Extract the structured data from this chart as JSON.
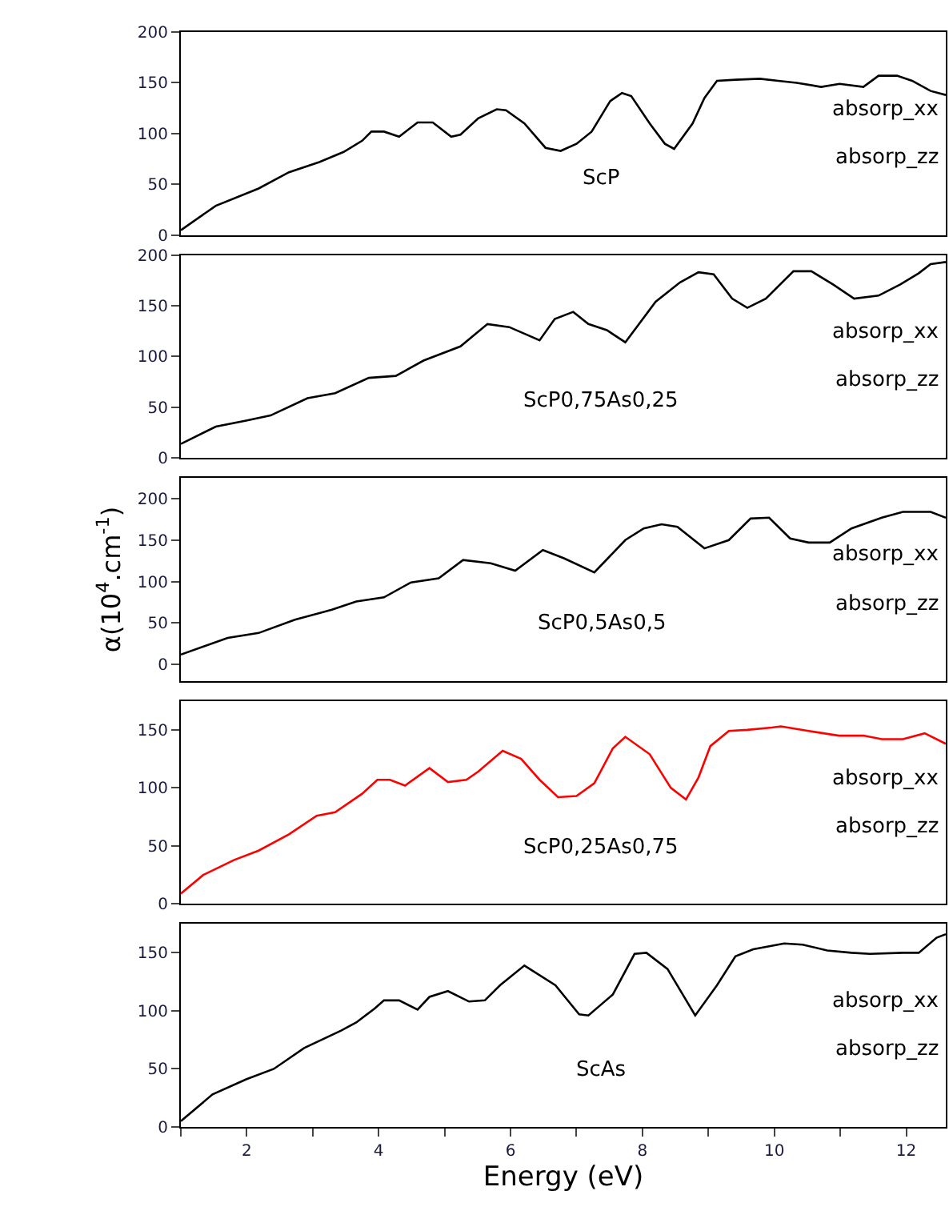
{
  "chart_data": [
    {
      "type": "line",
      "tick_labels": "y",
      "xlim": [
        1,
        12.6
      ],
      "ylim": [
        0,
        200
      ],
      "yticks": [
        0,
        50,
        100,
        150,
        200
      ],
      "x": [
        1,
        1.53,
        2.18,
        2.64,
        3.1,
        3.47,
        3.75,
        3.89,
        4.08,
        4.31,
        4.59,
        4.82,
        5.1,
        5.24,
        5.51,
        5.79,
        5.93,
        6.21,
        6.53,
        6.76,
        7.0,
        7.23,
        7.51,
        7.69,
        7.83,
        8.11,
        8.34,
        8.48,
        8.76,
        8.94,
        9.13,
        9.41,
        9.78,
        10.06,
        10.34,
        10.71,
        10.99,
        11.35,
        11.58,
        11.86,
        12.09,
        12.37,
        12.6
      ],
      "series": [
        {
          "color": "#000000",
          "values": [
            5,
            29,
            46,
            62,
            72,
            82,
            93,
            102,
            102,
            97,
            111,
            111,
            97,
            99,
            115,
            124,
            123,
            110,
            86,
            83,
            90,
            102,
            132,
            140,
            137,
            110,
            90,
            85,
            110,
            135,
            152,
            153,
            154,
            152,
            150,
            146,
            149,
            146,
            157,
            157,
            152,
            142,
            138
          ]
        }
      ],
      "annotations": [
        "ScP",
        "absorp_xx",
        "absorp_zz"
      ]
    },
    {
      "type": "line",
      "tick_labels": "y",
      "xlim": [
        1,
        12.6
      ],
      "ylim": [
        0,
        200
      ],
      "yticks": [
        0,
        50,
        100,
        150,
        200
      ],
      "x": [
        1,
        1.53,
        1.99,
        2.36,
        2.92,
        3.34,
        3.85,
        4.26,
        4.68,
        5.24,
        5.65,
        5.98,
        6.44,
        6.67,
        6.95,
        7.18,
        7.46,
        7.74,
        8.2,
        8.57,
        8.85,
        9.08,
        9.36,
        9.59,
        9.87,
        10.29,
        10.56,
        10.89,
        11.21,
        11.58,
        11.91,
        12.19,
        12.37,
        12.6
      ],
      "series": [
        {
          "color": "#000000",
          "values": [
            14,
            31,
            37,
            42,
            59,
            64,
            79,
            81,
            96,
            110,
            132,
            129,
            116,
            137,
            144,
            132,
            126,
            114,
            154,
            173,
            183,
            181,
            157,
            148,
            157,
            184,
            184,
            171,
            157,
            160,
            171,
            182,
            191,
            193
          ]
        }
      ],
      "annotations": [
        "ScP0,75As0,25",
        "absorp_xx",
        "absorp_zz"
      ]
    },
    {
      "type": "line",
      "tick_labels": "y",
      "xlim": [
        1,
        12.6
      ],
      "ylim": [
        -20,
        225
      ],
      "yticks": [
        0,
        50,
        100,
        150,
        200
      ],
      "ylabel": "α(10$^{4}$.cm$^{-1}$)",
      "x": [
        1,
        1.71,
        2.18,
        2.73,
        3.29,
        3.66,
        4.08,
        4.49,
        4.91,
        5.28,
        5.7,
        6.07,
        6.49,
        6.81,
        7.27,
        7.74,
        8.02,
        8.29,
        8.53,
        8.94,
        9.31,
        9.64,
        9.92,
        10.24,
        10.52,
        10.84,
        11.17,
        11.63,
        11.95,
        12.37,
        12.6
      ],
      "series": [
        {
          "color": "#000000",
          "values": [
            12,
            32,
            38,
            54,
            66,
            76,
            81,
            99,
            104,
            126,
            122,
            113,
            138,
            128,
            111,
            150,
            164,
            169,
            166,
            140,
            150,
            176,
            177,
            152,
            147,
            147,
            164,
            177,
            184,
            184,
            177
          ]
        }
      ],
      "annotations": [
        "ScP0,5As0,5",
        "absorp_xx",
        "absorp_zz"
      ]
    },
    {
      "type": "line",
      "tick_labels": "y",
      "xlim": [
        1,
        12.6
      ],
      "ylim": [
        0,
        175
      ],
      "yticks": [
        0,
        50,
        100,
        150
      ],
      "x": [
        1,
        1.34,
        1.81,
        2.18,
        2.64,
        3.06,
        3.34,
        3.75,
        3.98,
        4.17,
        4.4,
        4.77,
        5.05,
        5.33,
        5.51,
        5.88,
        6.16,
        6.44,
        6.72,
        7.0,
        7.27,
        7.55,
        7.74,
        8.11,
        8.43,
        8.66,
        8.85,
        9.03,
        9.31,
        9.59,
        9.96,
        10.1,
        10.52,
        10.98,
        11.35,
        11.63,
        11.95,
        12.28,
        12.6
      ],
      "series": [
        {
          "color": "#ff0000",
          "values": [
            9,
            25,
            38,
            46,
            60,
            76,
            79,
            95,
            107,
            107,
            102,
            117,
            105,
            107,
            114,
            132,
            125,
            107,
            92,
            93,
            104,
            134,
            144,
            129,
            100,
            90,
            109,
            136,
            149,
            150,
            152,
            153,
            149,
            145,
            145,
            142,
            142,
            147,
            138
          ]
        }
      ],
      "annotations": [
        "ScP0,25As0,75",
        "absorp_xx",
        "absorp_zz"
      ]
    },
    {
      "type": "line",
      "xlim": [
        1,
        12.6
      ],
      "ylim": [
        0,
        175
      ],
      "yticks": [
        0,
        50,
        100,
        150
      ],
      "xlabel": "Energy (eV)",
      "xticks": [
        {
          "value": 1,
          "label": null
        },
        2,
        {
          "value": 3,
          "label": null
        },
        4,
        {
          "value": 5,
          "label": null
        },
        6,
        {
          "value": 7,
          "label": null
        },
        8,
        {
          "value": 9,
          "label": null
        },
        10,
        {
          "value": 11,
          "label": null
        },
        12
      ],
      "x": [
        1,
        1.48,
        1.99,
        2.41,
        2.87,
        3.43,
        3.66,
        3.94,
        4.08,
        4.31,
        4.59,
        4.77,
        5.05,
        5.37,
        5.61,
        5.84,
        6.21,
        6.68,
        7.04,
        7.18,
        7.55,
        7.88,
        8.06,
        8.38,
        8.8,
        9.13,
        9.41,
        9.68,
        10.15,
        10.43,
        10.8,
        11.17,
        11.45,
        11.95,
        12.19,
        12.46,
        12.6
      ],
      "series": [
        {
          "color": "#000000",
          "values": [
            5,
            28,
            41,
            50,
            68,
            83,
            90,
            102,
            109,
            109,
            101,
            112,
            117,
            108,
            109,
            122,
            139,
            122,
            97,
            96,
            114,
            149,
            150,
            136,
            96,
            122,
            147,
            153,
            158,
            157,
            152,
            150,
            149,
            150,
            150,
            163,
            166
          ]
        }
      ],
      "annotations": [
        "ScAs",
        "absorp_xx",
        "absorp_zz"
      ]
    }
  ]
}
